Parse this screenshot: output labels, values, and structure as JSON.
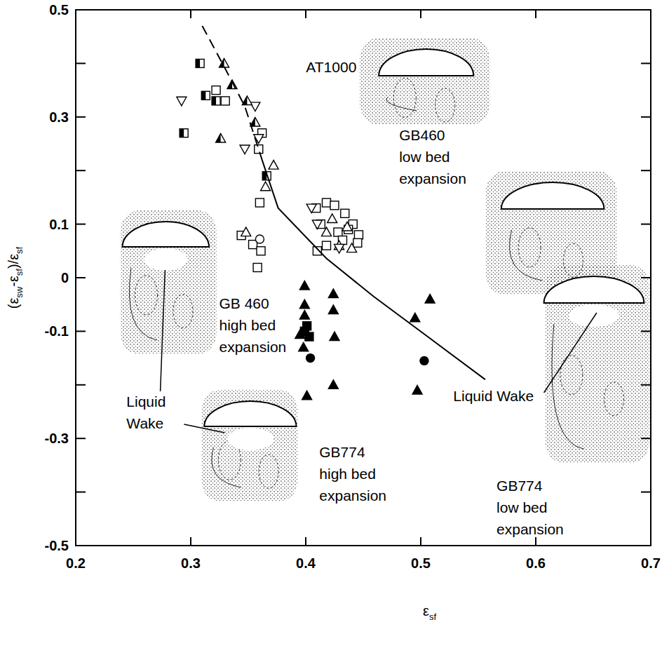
{
  "chart_data": {
    "type": "scatter",
    "xlabel": "εsf",
    "ylabel": "(εsw-εsf)/εsf",
    "xlim": [
      0.2,
      0.7
    ],
    "ylim": [
      -0.5,
      0.5
    ],
    "xticks": [
      0.2,
      0.3,
      0.4,
      0.5,
      0.6,
      0.7
    ],
    "yticks": [
      0.5,
      0.3,
      0.1,
      0,
      -0.1,
      -0.3,
      -0.5
    ],
    "y_minor_ticks": [
      0.4,
      0.2,
      -0.2,
      -0.4
    ],
    "grid": false,
    "series": [
      {
        "marker": "square-open",
        "color": "#000000",
        "x": [
          0.322,
          0.33,
          0.362,
          0.359,
          0.36,
          0.344,
          0.354,
          0.358,
          0.361,
          0.409,
          0.418,
          0.425,
          0.434,
          0.441,
          0.413,
          0.428,
          0.437,
          0.446,
          0.418,
          0.432,
          0.445,
          0.41
        ],
        "values": [
          0.35,
          0.33,
          0.27,
          0.24,
          0.14,
          0.079,
          0.062,
          0.019,
          0.05,
          0.13,
          0.14,
          0.135,
          0.12,
          0.1,
          0.1,
          0.085,
          0.09,
          0.08,
          0.06,
          0.07,
          0.065,
          0.05
        ]
      },
      {
        "marker": "square-half",
        "color": "#000000",
        "x": [
          0.308,
          0.313,
          0.322,
          0.294,
          0.366
        ],
        "values": [
          0.4,
          0.34,
          0.33,
          0.27,
          0.19
        ]
      },
      {
        "marker": "triangle-up-open",
        "color": "#000000",
        "x": [
          0.365,
          0.372,
          0.348,
          0.418,
          0.429,
          0.44,
          0.436,
          0.423
        ],
        "values": [
          0.17,
          0.21,
          0.085,
          0.085,
          0.06,
          0.055,
          0.095,
          0.11
        ]
      },
      {
        "marker": "triangle-down-open",
        "color": "#000000",
        "x": [
          0.292,
          0.347,
          0.356,
          0.359,
          0.41,
          0.429,
          0.405
        ],
        "values": [
          0.33,
          0.24,
          0.32,
          0.26,
          0.1,
          0.055,
          0.13
        ]
      },
      {
        "marker": "triangle-up-half",
        "color": "#000000",
        "x": [
          0.329,
          0.336,
          0.326,
          0.356,
          0.349
        ],
        "values": [
          0.4,
          0.36,
          0.26,
          0.29,
          0.33
        ]
      },
      {
        "marker": "circle-open",
        "color": "#000000",
        "x": [
          0.36
        ],
        "values": [
          0.072
        ]
      },
      {
        "marker": "triangle-up-filled",
        "color": "#000000",
        "x": [
          0.399,
          0.399,
          0.399,
          0.395,
          0.398,
          0.424,
          0.424,
          0.425,
          0.401,
          0.424,
          0.508,
          0.495,
          0.497
        ],
        "values": [
          -0.015,
          -0.05,
          -0.07,
          -0.106,
          -0.13,
          -0.03,
          -0.06,
          -0.11,
          -0.22,
          -0.2,
          -0.04,
          -0.075,
          -0.21
        ]
      },
      {
        "marker": "square-filled",
        "color": "#000000",
        "x": [
          0.399,
          0.403,
          0.401
        ],
        "values": [
          -0.1,
          -0.11,
          -0.09
        ]
      },
      {
        "marker": "circle-filled",
        "color": "#000000",
        "x": [
          0.404,
          0.503
        ],
        "values": [
          -0.15,
          -0.155
        ]
      },
      {
        "type": "line",
        "line_style": "dashed",
        "color": "#000000",
        "x": [
          0.31,
          0.33,
          0.347,
          0.362
        ],
        "values": [
          0.47,
          0.39,
          0.32,
          0.22
        ]
      },
      {
        "type": "line",
        "line_style": "solid",
        "color": "#000000",
        "x": [
          0.362,
          0.376,
          0.418,
          0.459,
          0.506,
          0.556
        ],
        "values": [
          0.22,
          0.13,
          0.036,
          -0.035,
          -0.11,
          -0.19
        ]
      }
    ],
    "annotations": [
      {
        "text": "AT1000"
      },
      {
        "text": "GB460\nlow bed\nexpansion"
      },
      {
        "text": "GB 460\nhigh bed\nexpansion"
      },
      {
        "text": "Liquid\nWake"
      },
      {
        "text": "GB774\nhigh bed\nexpansion"
      },
      {
        "text": "Liquid Wake"
      },
      {
        "text": "GB774\nlow bed\nexpansion"
      }
    ]
  }
}
